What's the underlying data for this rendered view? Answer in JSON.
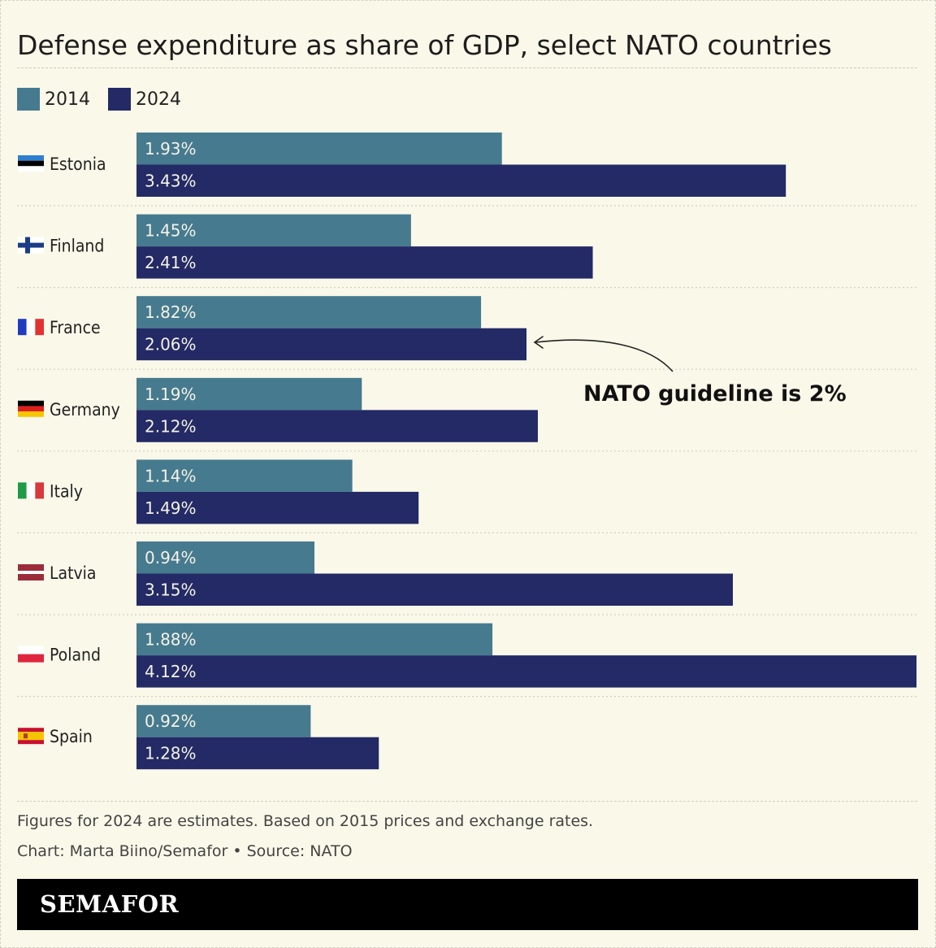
{
  "title": "Defense expenditure as share of GDP, select NATO countries",
  "colors": {
    "background": "#faf8e9",
    "series_2014": "#467a8f",
    "series_2024": "#232a65",
    "bar_text": "#f4f2e6"
  },
  "chart_data": {
    "type": "bar",
    "orientation": "horizontal",
    "title": "Defense expenditure as share of GDP, select NATO countries",
    "categories": [
      "Estonia",
      "Finland",
      "France",
      "Germany",
      "Italy",
      "Latvia",
      "Poland",
      "Spain"
    ],
    "flags": [
      "estonia-flag-icon",
      "finland-flag-icon",
      "france-flag-icon",
      "germany-flag-icon",
      "italy-flag-icon",
      "latvia-flag-icon",
      "poland-flag-icon",
      "spain-flag-icon"
    ],
    "series": [
      {
        "name": "2014",
        "color": "#467a8f",
        "values": [
          1.93,
          1.45,
          1.82,
          1.19,
          1.14,
          0.94,
          1.88,
          0.92
        ],
        "labels": [
          "1.93%",
          "1.45%",
          "1.82%",
          "1.19%",
          "1.14%",
          "0.94%",
          "1.88%",
          "0.92%"
        ]
      },
      {
        "name": "2024",
        "color": "#232a65",
        "values": [
          3.43,
          2.41,
          2.06,
          2.12,
          1.49,
          3.15,
          4.12,
          1.28
        ],
        "labels": [
          "3.43%",
          "2.41%",
          "2.06%",
          "2.12%",
          "1.49%",
          "3.15%",
          "4.12%",
          "1.28%"
        ]
      }
    ],
    "xlim": [
      0,
      4.12
    ],
    "xlabel": "",
    "ylabel": "",
    "grid": false,
    "legend_position": "top-left",
    "annotation": {
      "text": "NATO guideline is 2%",
      "points_to": "France 2024"
    }
  },
  "legend": {
    "label_2014": "2014",
    "label_2024": "2024"
  },
  "notes": {
    "line1": "Figures for 2024 are estimates. Based on 2015 prices and exchange rates.",
    "line2": "Chart: Marta Biino/Semafor • Source: NATO"
  },
  "brand": "SEMAFOR"
}
